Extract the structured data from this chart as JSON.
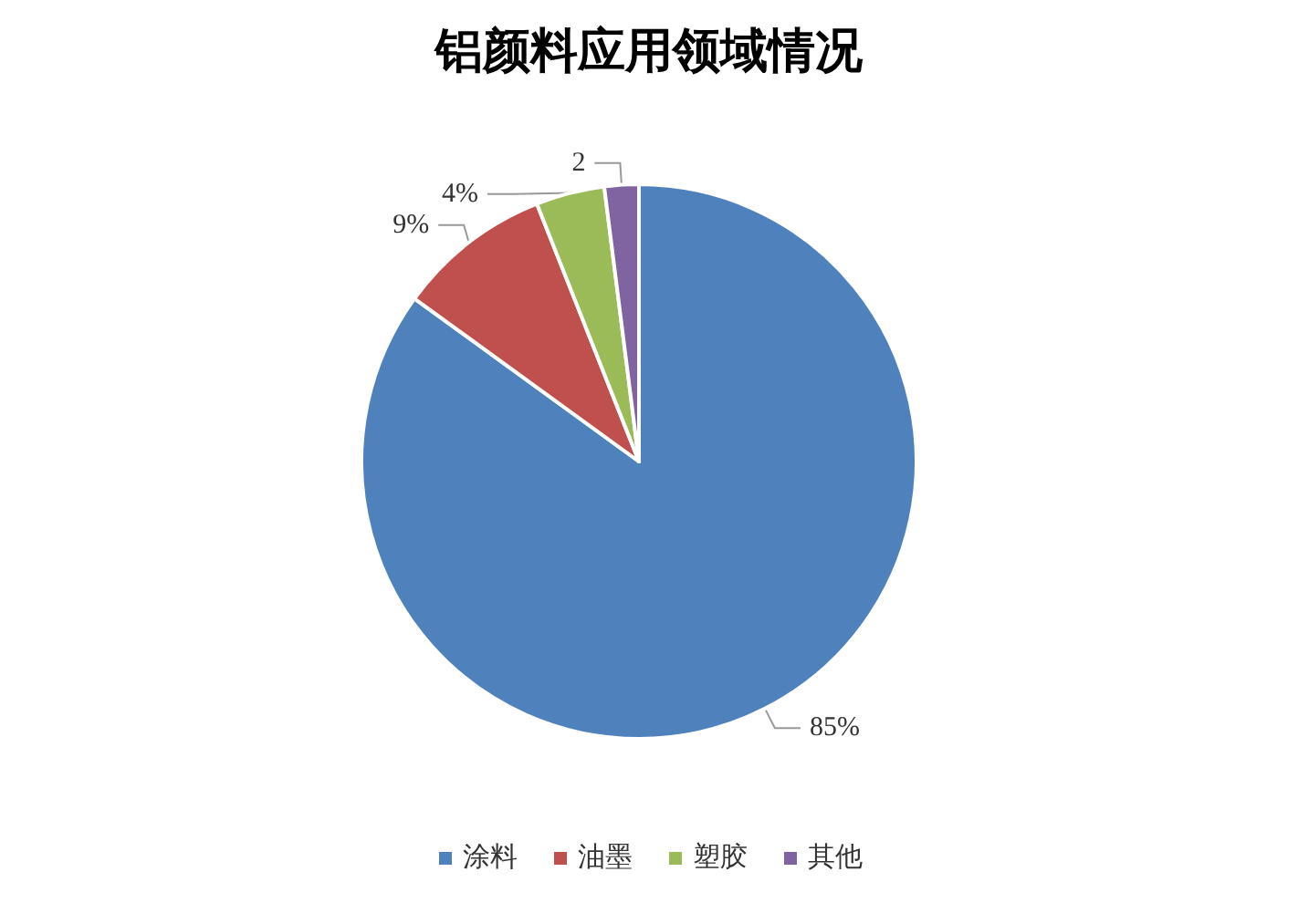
{
  "chart_data": {
    "type": "pie",
    "title": "铝颜料应用领域情况",
    "categories": [
      "涂料",
      "油墨",
      "塑胶",
      "其他"
    ],
    "values": [
      85,
      9,
      4,
      2
    ],
    "colors": [
      "#4f81bd",
      "#c0504d",
      "#9bbb59",
      "#8064a2"
    ],
    "value_labels": [
      "85%",
      "9%",
      "4%",
      "2"
    ],
    "legend": "bottom"
  }
}
